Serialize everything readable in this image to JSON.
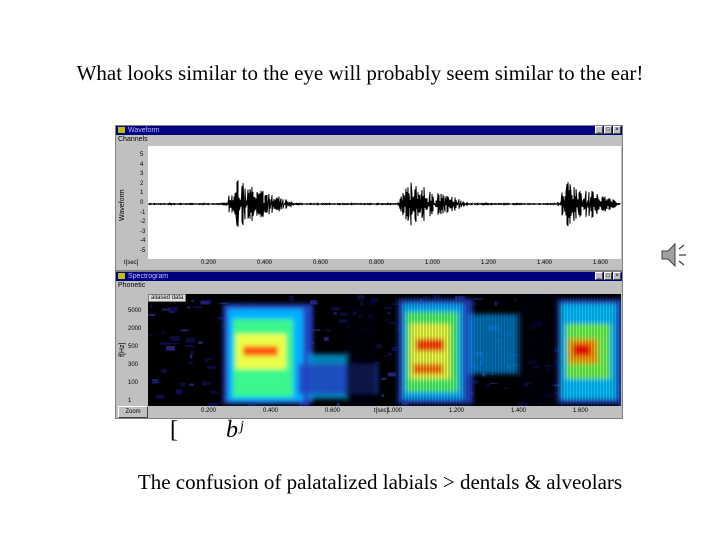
{
  "slide": {
    "title": "What looks similar to the eye will probably seem similar to the ear!",
    "caption": "The confusion of palatalized labials > dentals & alveolars",
    "ipa_left": "[",
    "ipa_right": "bʲ"
  },
  "waveform_window": {
    "title": "Waveform",
    "menu": "Channels",
    "axis_label": "Waveform",
    "y_ticks": [
      "5",
      "4",
      "3",
      "2",
      "1",
      "0",
      "-1",
      "-2",
      "-3",
      "-4",
      "-5"
    ],
    "x_unit": "t[sec]",
    "x_ticks": [
      "0.200",
      "0.400",
      "0.600",
      "0.800",
      "1.000",
      "1.200",
      "1.400",
      "1.600"
    ]
  },
  "spectrogram_window": {
    "title": "Spectrogram",
    "menu": "Phonetic",
    "tab_label": "aliased data",
    "axis_label": "f[Hz]",
    "y_ticks": [
      "5000",
      "2000",
      "500",
      "300",
      "100",
      "1"
    ],
    "x_unit": "t[sec]",
    "x_ticks": [
      "0.200",
      "0.400",
      "0.600",
      "1.000",
      "1.200",
      "1.400",
      "1.600"
    ],
    "status": "Zoom"
  },
  "colors": {
    "titlebar": "#000080",
    "window_face": "#c0c0c0",
    "spectro_bg": "#000000",
    "spectro_low": "#000080",
    "spectro_mid": "#00c0ff",
    "spectro_high": "#ff0000"
  },
  "icons": {
    "speaker": "speaker-icon"
  }
}
